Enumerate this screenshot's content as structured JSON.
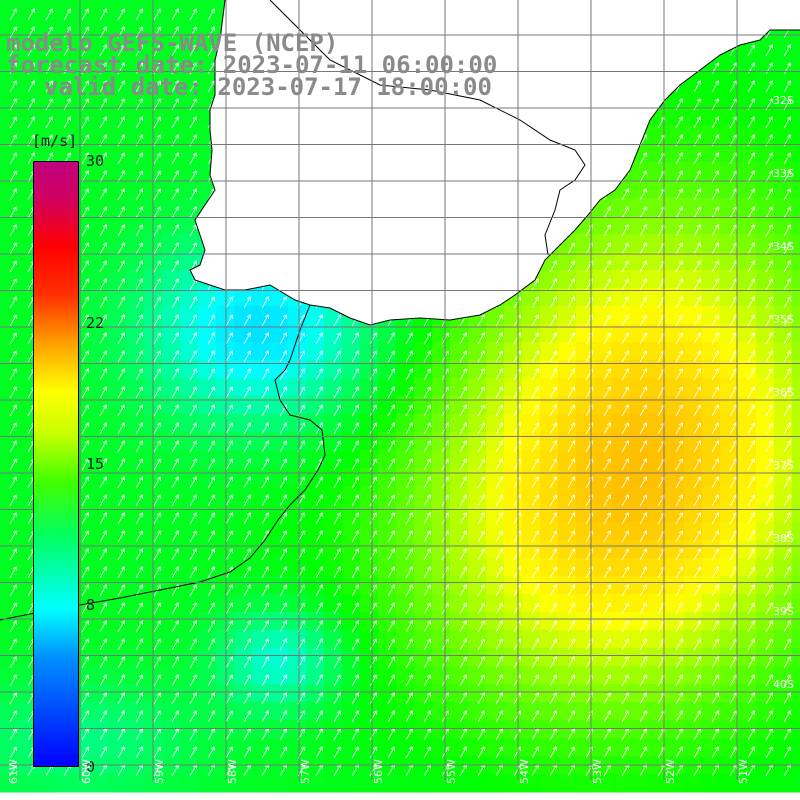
{
  "title": {
    "line1": "modelo GEFS-WAVE (NCEP)",
    "line2": "forecast date: 2023-07-11 06:00:00",
    "line3": "valid date: 2023-07-17 18:00:00"
  },
  "colorbar": {
    "unit": "[m/s]",
    "ticks": [
      {
        "label": "30",
        "value": 30
      },
      {
        "label": "22",
        "value": 22
      },
      {
        "label": "15",
        "value": 15
      },
      {
        "label": "8",
        "value": 8
      },
      {
        "label": "0",
        "value": 0
      }
    ],
    "colors": [
      "#0000ff",
      "#00ffff",
      "#00ff00",
      "#ffff00",
      "#ff0000",
      "#c00080"
    ]
  },
  "latitude_labels": [
    "32S",
    "33S",
    "34S",
    "35S",
    "36S",
    "37S",
    "38S",
    "39S",
    "40S"
  ],
  "longitude_labels": [
    "61W",
    "60W",
    "59W",
    "58W",
    "57W",
    "56W",
    "55W",
    "54W",
    "53W",
    "52W",
    "51W"
  ],
  "colors": {
    "land": "#ffffff",
    "coast": "#000000",
    "grid": "#777777",
    "title_text": "#8a8a8a"
  }
}
